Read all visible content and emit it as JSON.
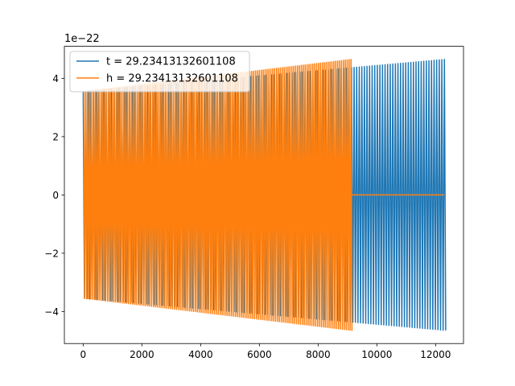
{
  "chart_data": {
    "type": "line",
    "title": "",
    "xlabel": "",
    "ylabel": "",
    "y_offset_label": "1e−22",
    "xlim": [
      -640,
      12950
    ],
    "ylim": [
      -5.1,
      5.1
    ],
    "x_ticks": [
      0,
      2000,
      4000,
      6000,
      8000,
      10000,
      12000
    ],
    "x_tick_labels": [
      "0",
      "2000",
      "4000",
      "6000",
      "8000",
      "10000",
      "12000"
    ],
    "y_ticks": [
      -4,
      -2,
      0,
      2,
      4
    ],
    "y_tick_labels": [
      "−4",
      "−2",
      "0",
      "2",
      "4"
    ],
    "grid": false,
    "legend_position": "top-left",
    "series": [
      {
        "name": "t = 29.23413132601108",
        "color": "#1f77b4",
        "x_range": [
          0,
          12300
        ],
        "amplitude_start": 3.55,
        "amplitude_end": 4.65,
        "cycles": 140,
        "note_values": "oscillating signal, envelope grows from ~3.55 to ~4.65 (×1e-22)"
      },
      {
        "name": "h = 29.23413132601108",
        "color": "#ff7f0e",
        "x_range": [
          0,
          9100
        ],
        "amplitude_start": 3.55,
        "amplitude_end": 4.65,
        "cycles": 140,
        "flat_after": 9120,
        "flat_end": 12300
      }
    ]
  }
}
